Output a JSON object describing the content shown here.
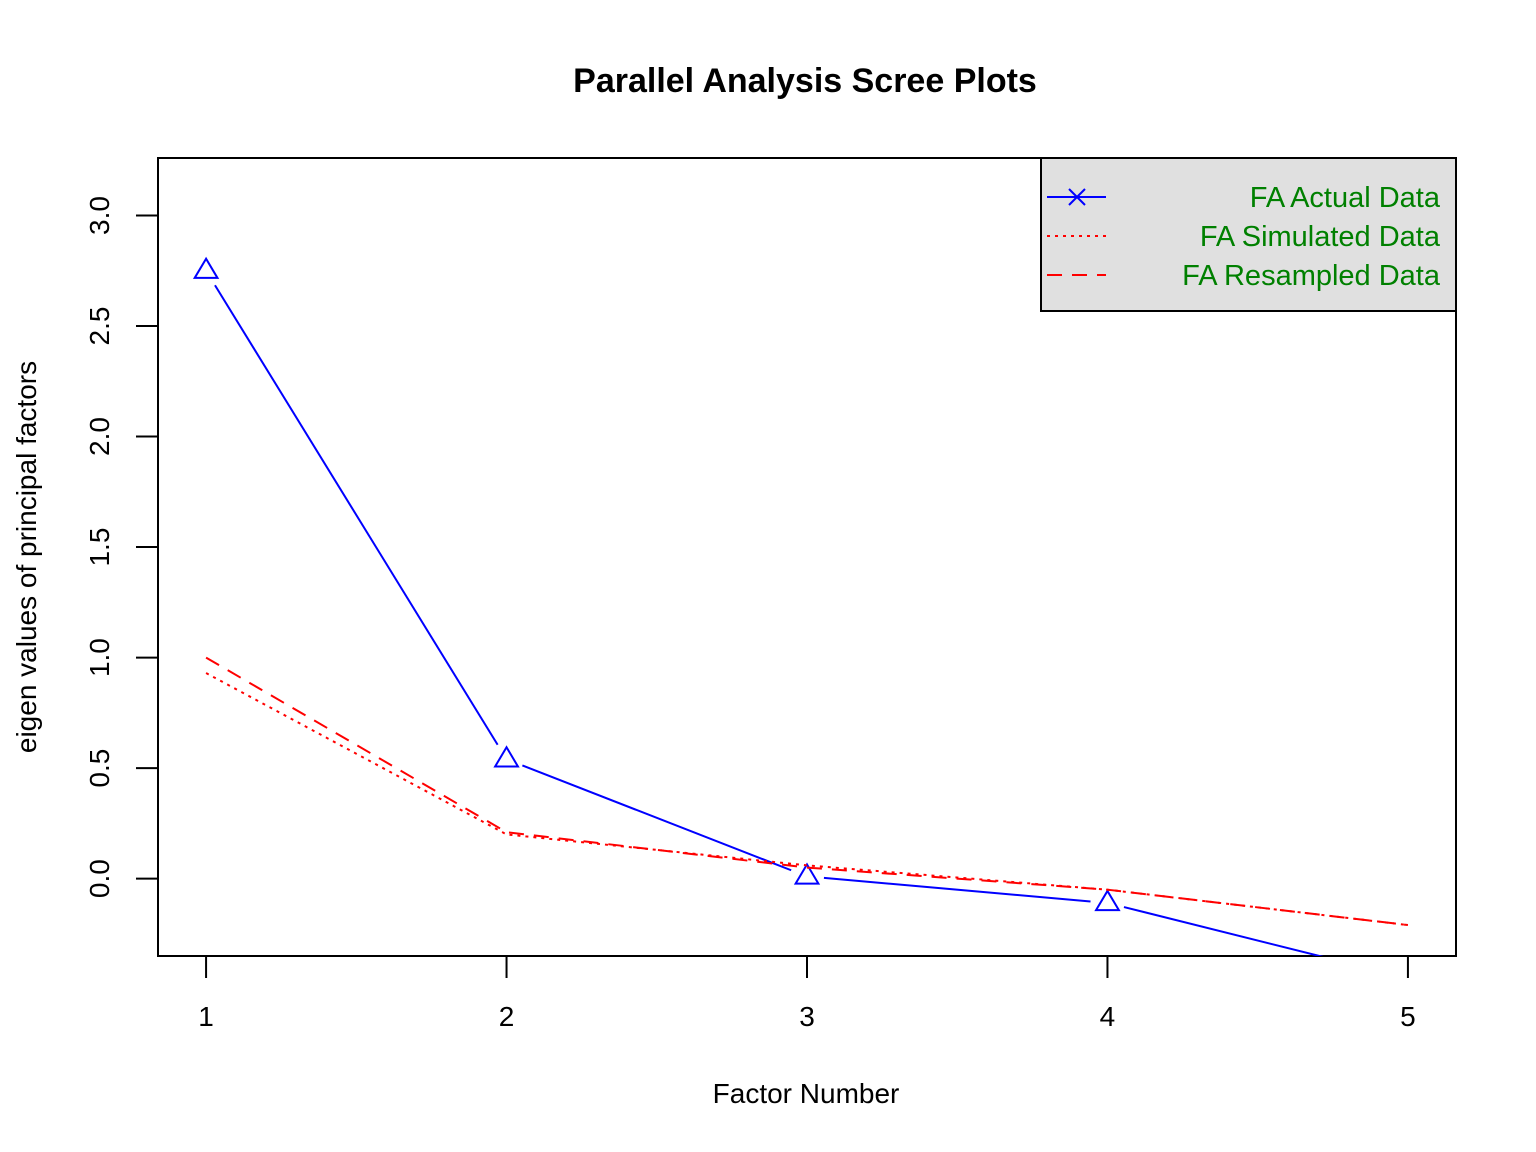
{
  "chart_data": {
    "type": "line",
    "title": "Parallel Analysis Scree Plots",
    "xlabel": "Factor Number",
    "ylabel": "eigen values of principal factors",
    "x": [
      1,
      2,
      3,
      4,
      5
    ],
    "xlim": [
      0.84,
      5.16
    ],
    "ylim": [
      -0.35,
      3.26
    ],
    "xticks": [
      "1",
      "2",
      "3",
      "4",
      "5"
    ],
    "yticks": [
      "0.0",
      "0.5",
      "1.0",
      "1.5",
      "2.0",
      "2.5",
      "3.0"
    ],
    "grid": false,
    "legend_position": "top-right",
    "legend_text_color": "#008000",
    "legend_bg": "#e0e0e0",
    "series": [
      {
        "name": "FA  Actual Data",
        "values": [
          2.75,
          0.54,
          0.01,
          -0.11,
          -0.45
        ],
        "color": "#0000ff",
        "dash": "solid",
        "marker": "triangle"
      },
      {
        "name": "FA  Simulated Data",
        "values": [
          0.93,
          0.2,
          0.06,
          -0.05,
          -0.21
        ],
        "color": "#ff0000",
        "dash": "dotted",
        "marker": "none"
      },
      {
        "name": "FA  Resampled Data",
        "values": [
          1.0,
          0.21,
          0.05,
          -0.05,
          -0.21
        ],
        "color": "#ff0000",
        "dash": "dashed",
        "marker": "none"
      }
    ]
  }
}
